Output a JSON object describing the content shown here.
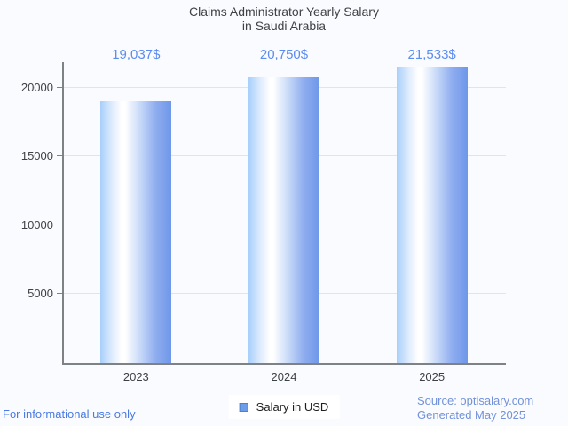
{
  "title": {
    "line1": "Claims Administrator Yearly Salary",
    "line2": "in Saudi Arabia"
  },
  "chart_data": {
    "type": "bar",
    "title": "Claims Administrator Yearly Salary in Saudi Arabia",
    "categories": [
      "2023",
      "2024",
      "2025"
    ],
    "values": [
      19037,
      20750,
      21533
    ],
    "value_labels": [
      "19,037$",
      "20,750$",
      "21,533$"
    ],
    "series": [
      {
        "name": "Salary in USD",
        "values": [
          19037,
          20750,
          21533
        ]
      }
    ],
    "xlabel": "",
    "ylabel": "",
    "y_ticks": [
      5000,
      10000,
      15000,
      20000
    ],
    "ylim": [
      0,
      22000
    ],
    "grid": true,
    "legend_position": "bottom-center",
    "bar_color_gradient": [
      "#a7cffa",
      "#ffffff",
      "#6e97e9"
    ],
    "value_label_color": "#5c8cef"
  },
  "legend": {
    "label": "Salary in USD",
    "swatch_color": "#6c9de8"
  },
  "footer": {
    "left": "For informational use only",
    "source": "Source: optisalary.com",
    "generated": "Generated May 2025"
  },
  "colors": {
    "background": "#fafbfe",
    "gridline": "#e2e4e9",
    "axis": "#7f8285",
    "title_text": "#3f4245",
    "tick_text": "#3e4144",
    "footer_left_text": "#4a7ae2",
    "footer_right_text": "#7191d9"
  }
}
